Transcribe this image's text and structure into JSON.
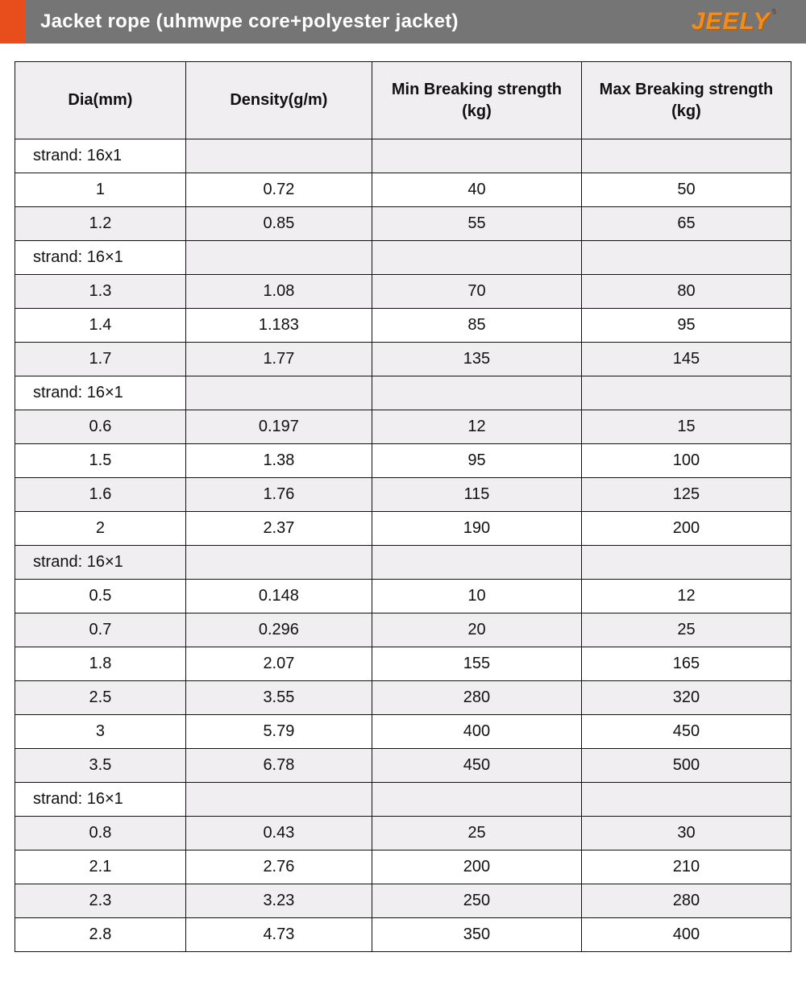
{
  "header": {
    "title": "Jacket rope (uhmwpe core+polyester jacket)",
    "logo_text": "JEELY",
    "logo_sup": "s",
    "accent_color": "#e84d1c",
    "bar_color": "#757575",
    "title_color": "#ffffff",
    "logo_color": "#f28c1e"
  },
  "table": {
    "type": "table",
    "border_color": "#111111",
    "header_bg": "#f0eef1",
    "row_bg": "#ffffff",
    "row_alt_bg": "#f0eef1",
    "font_size": 20,
    "columns": [
      {
        "label": "Dia(mm)"
      },
      {
        "label": "Density(g/m)"
      },
      {
        "label": "Min Breaking strength  (kg)"
      },
      {
        "label": "Max Breaking strength  (kg)"
      }
    ],
    "rows": [
      {
        "kind": "strand",
        "alt": false,
        "label": "strand:  16x1"
      },
      {
        "kind": "data",
        "alt": false,
        "cells": [
          "1",
          "0.72",
          "40",
          "50"
        ]
      },
      {
        "kind": "data",
        "alt": true,
        "cells": [
          "1.2",
          "0.85",
          "55",
          "65"
        ]
      },
      {
        "kind": "strand",
        "alt": false,
        "label": "strand:  16×1"
      },
      {
        "kind": "data",
        "alt": true,
        "cells": [
          "1.3",
          "1.08",
          "70",
          "80"
        ]
      },
      {
        "kind": "data",
        "alt": false,
        "cells": [
          "1.4",
          "1.183",
          "85",
          "95"
        ]
      },
      {
        "kind": "data",
        "alt": true,
        "cells": [
          "1.7",
          "1.77",
          "135",
          "145"
        ]
      },
      {
        "kind": "strand",
        "alt": false,
        "label": "strand:  16×1"
      },
      {
        "kind": "data",
        "alt": true,
        "cells": [
          "0.6",
          "0.197",
          "12",
          "15"
        ]
      },
      {
        "kind": "data",
        "alt": false,
        "cells": [
          "1.5",
          "1.38",
          "95",
          "100"
        ]
      },
      {
        "kind": "data",
        "alt": true,
        "cells": [
          "1.6",
          "1.76",
          "115",
          "125"
        ]
      },
      {
        "kind": "data",
        "alt": false,
        "cells": [
          "2",
          "2.37",
          "190",
          "200"
        ]
      },
      {
        "kind": "strand",
        "alt": true,
        "label": "strand:  16×1"
      },
      {
        "kind": "data",
        "alt": false,
        "cells": [
          "0.5",
          "0.148",
          "10",
          "12"
        ]
      },
      {
        "kind": "data",
        "alt": true,
        "cells": [
          "0.7",
          "0.296",
          "20",
          "25"
        ]
      },
      {
        "kind": "data",
        "alt": false,
        "cells": [
          "1.8",
          "2.07",
          "155",
          "165"
        ]
      },
      {
        "kind": "data",
        "alt": true,
        "cells": [
          "2.5",
          "3.55",
          "280",
          "320"
        ]
      },
      {
        "kind": "data",
        "alt": false,
        "cells": [
          "3",
          "5.79",
          "400",
          "450"
        ]
      },
      {
        "kind": "data",
        "alt": true,
        "cells": [
          "3.5",
          "6.78",
          "450",
          "500"
        ]
      },
      {
        "kind": "strand",
        "alt": false,
        "label": "strand:  16×1"
      },
      {
        "kind": "data",
        "alt": true,
        "cells": [
          "0.8",
          "0.43",
          "25",
          "30"
        ]
      },
      {
        "kind": "data",
        "alt": false,
        "cells": [
          "2.1",
          "2.76",
          "200",
          "210"
        ]
      },
      {
        "kind": "data",
        "alt": true,
        "cells": [
          "2.3",
          "3.23",
          "250",
          "280"
        ]
      },
      {
        "kind": "data",
        "alt": false,
        "cells": [
          "2.8",
          "4.73",
          "350",
          "400"
        ]
      }
    ]
  }
}
